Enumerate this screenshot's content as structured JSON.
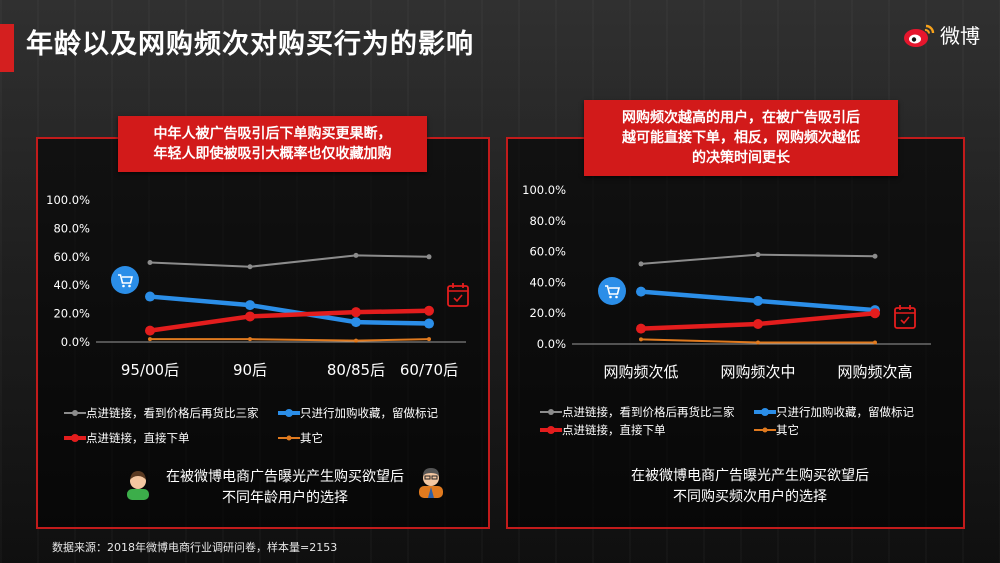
{
  "page": {
    "title": "年龄以及网购频次对购买行为的影响",
    "brand": "微博",
    "source": "数据来源：2018年微博电商行业调研问卷，样本量=2153"
  },
  "left": {
    "callout_line1": "中年人被广告吸引后下单购买更果断，",
    "callout_line2": "年轻人即使被吸引大概率也仅收藏加购",
    "caption_line1": "在被微博电商广告曝光产生购买欲望后",
    "caption_line2": "不同年龄用户的选择"
  },
  "right": {
    "callout_line1": "网购频次越高的用户，在被广告吸引后",
    "callout_line2": "越可能直接下单，相反，网购频次越低",
    "callout_line3": "的决策时间更长",
    "caption_line1": "在被微博电商广告曝光产生购买欲望后",
    "caption_line2": "不同购买频次用户的选择"
  },
  "legend": {
    "s1": "点进链接，看到价格后再货比三家",
    "s2": "只进行加购收藏，留做标记",
    "s3": "点进链接，直接下单",
    "s4": "其它"
  },
  "colors": {
    "accent": "#d21a1a",
    "s1": "#8c8c8c",
    "s2": "#2b8ee8",
    "s3": "#e31d1d",
    "s4": "#e07a1f"
  },
  "chart_data": [
    {
      "type": "line",
      "categories": [
        "95/00后",
        "90后",
        "80/85后",
        "60/70后"
      ],
      "y_ticks": [
        "100.0%",
        "80.0%",
        "60.0%",
        "40.0%",
        "20.0%",
        "0.0%"
      ],
      "ylim": [
        0,
        100
      ],
      "series": [
        {
          "name": "点进链接，看到价格后再货比三家",
          "values": [
            56,
            53,
            61,
            60
          ]
        },
        {
          "name": "只进行加购收藏，留做标记",
          "values": [
            32,
            26,
            14,
            13
          ]
        },
        {
          "name": "点进链接，直接下单",
          "values": [
            8,
            18,
            21,
            22
          ]
        },
        {
          "name": "其它",
          "values": [
            2,
            2,
            1,
            2
          ]
        }
      ]
    },
    {
      "type": "line",
      "categories": [
        "网购频次低",
        "网购频次中",
        "网购频次高"
      ],
      "y_ticks": [
        "100.0%",
        "80.0%",
        "60.0%",
        "40.0%",
        "20.0%",
        "0.0%"
      ],
      "ylim": [
        0,
        100
      ],
      "series": [
        {
          "name": "点进链接，看到价格后再货比三家",
          "values": [
            52,
            58,
            57
          ]
        },
        {
          "name": "只进行加购收藏，留做标记",
          "values": [
            34,
            28,
            22
          ]
        },
        {
          "name": "点进链接，直接下单",
          "values": [
            10,
            13,
            20
          ]
        },
        {
          "name": "其它",
          "values": [
            3,
            1,
            1
          ]
        }
      ]
    }
  ]
}
